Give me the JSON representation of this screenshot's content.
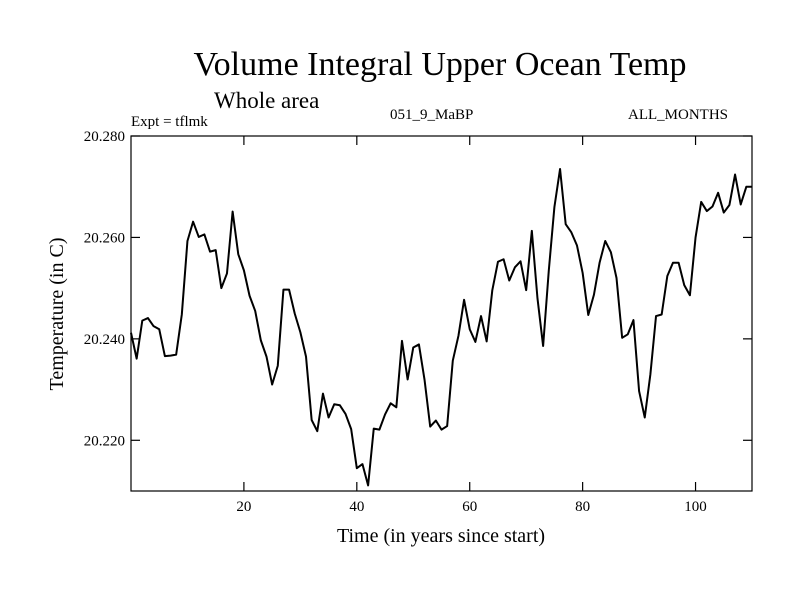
{
  "header": {
    "title": "Volume Integral Upper Ocean Temp",
    "subtitle": "Whole area",
    "experiment": "Expt = tflmk",
    "run_id": "051_9_MaBP",
    "months": "ALL_MONTHS"
  },
  "chart_data": {
    "type": "line",
    "title": "Volume Integral Upper Ocean Temp",
    "xlabel": "Time (in years since start)",
    "ylabel": "Temperature (in C)",
    "xlim": [
      0,
      110
    ],
    "ylim": [
      20.21,
      20.28
    ],
    "xticks": [
      20,
      40,
      60,
      80,
      100
    ],
    "xtick_labels": [
      "20",
      "40",
      "60",
      "80",
      "100"
    ],
    "yticks": [
      20.22,
      20.24,
      20.26,
      20.28
    ],
    "ytick_labels": [
      "20.220",
      "20.240",
      "20.260",
      "20.280"
    ],
    "grid": false,
    "color": "#000000",
    "series": [
      {
        "name": "Volume Integral Upper Ocean Temp",
        "x": [
          0,
          1,
          2,
          3,
          4,
          5,
          6,
          7,
          8,
          9,
          10,
          11,
          12,
          13,
          14,
          15,
          16,
          17,
          18,
          19,
          20,
          21,
          22,
          23,
          24,
          25,
          26,
          27,
          28,
          29,
          30,
          31,
          32,
          33,
          34,
          35,
          36,
          37,
          38,
          39,
          40,
          41,
          42,
          43,
          44,
          45,
          46,
          47,
          48,
          49,
          50,
          51,
          52,
          53,
          54,
          55,
          56,
          57,
          58,
          59,
          60,
          61,
          62,
          63,
          64,
          65,
          66,
          67,
          68,
          69,
          70,
          71,
          72,
          73,
          74,
          75,
          76,
          77,
          78,
          79,
          80,
          81,
          82,
          83,
          84,
          85,
          86,
          87,
          88,
          89,
          90,
          91,
          92,
          93,
          94,
          95,
          96,
          97,
          98,
          99,
          100,
          101,
          102,
          103,
          104,
          105,
          106,
          107,
          108,
          109,
          110
        ],
        "values": [
          20.2412,
          20.2361,
          20.2436,
          20.2441,
          20.2425,
          20.2419,
          20.2366,
          20.2367,
          20.2369,
          20.2448,
          20.2593,
          20.2631,
          20.2601,
          20.2606,
          20.2572,
          20.2575,
          20.25,
          20.2529,
          20.2651,
          20.2567,
          20.2535,
          20.2485,
          20.2455,
          20.2397,
          20.2365,
          20.231,
          20.2347,
          20.2497,
          20.2497,
          20.245,
          20.2413,
          20.2365,
          20.224,
          20.2218,
          20.2292,
          20.2245,
          20.2271,
          20.2269,
          20.2252,
          20.2222,
          20.2145,
          20.2153,
          20.2111,
          20.2223,
          20.2221,
          20.2251,
          20.2273,
          20.2265,
          20.2396,
          20.232,
          20.2383,
          20.2389,
          20.2319,
          20.2227,
          20.2239,
          20.2221,
          20.2228,
          20.2357,
          20.2406,
          20.2477,
          20.2419,
          20.2394,
          20.2445,
          20.2395,
          20.2496,
          20.2552,
          20.2557,
          20.2515,
          20.2541,
          20.2553,
          20.2496,
          20.2613,
          20.248,
          20.2386,
          20.2534,
          20.266,
          20.2735,
          20.2626,
          20.261,
          20.2584,
          20.253,
          20.2447,
          20.2487,
          20.255,
          20.2593,
          20.2571,
          20.252,
          20.2402,
          20.2409,
          20.2437,
          20.2297,
          20.2245,
          20.233,
          20.2445,
          20.2448,
          20.2524,
          20.255,
          20.255,
          20.2506,
          20.2486,
          20.26,
          20.267,
          20.2652,
          20.2661,
          20.2688,
          20.2649,
          20.2664,
          20.2724,
          20.2665,
          20.27,
          20.27
        ]
      }
    ]
  }
}
